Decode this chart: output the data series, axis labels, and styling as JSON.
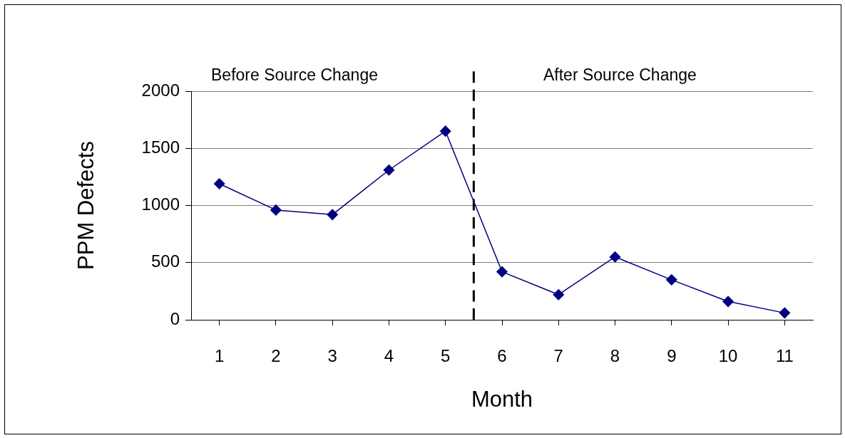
{
  "chart_data": {
    "type": "line",
    "xlabel": "Month",
    "ylabel": "PPM Defects",
    "x": [
      1,
      2,
      3,
      4,
      5,
      6,
      7,
      8,
      9,
      10,
      11
    ],
    "values": [
      1190,
      960,
      920,
      1310,
      1650,
      420,
      220,
      550,
      350,
      160,
      60
    ],
    "color": "#000080",
    "marker": "diamond",
    "line_style": "solid",
    "xlim": [
      0.5,
      11.5
    ],
    "xticks": [
      1,
      2,
      3,
      4,
      5,
      6,
      7,
      8,
      9,
      10,
      11
    ],
    "ylim": [
      0,
      2000
    ],
    "yticks": [
      0,
      500,
      1000,
      1500,
      2000
    ],
    "grid": "y",
    "legend": false,
    "ref_lines": [
      {
        "axis": "x",
        "value": 5.5,
        "line_style": "dashed",
        "color": "#000000"
      }
    ],
    "annotations": [
      "Before Source Change",
      "After Source Change"
    ]
  }
}
